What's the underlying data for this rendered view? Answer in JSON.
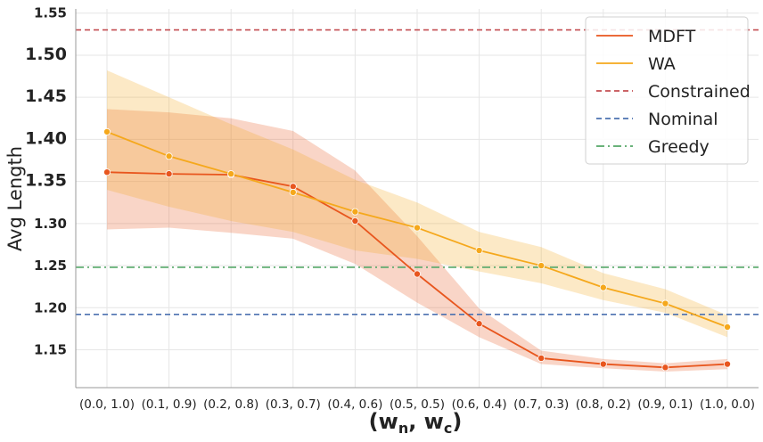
{
  "chart_data": {
    "type": "line",
    "title": "",
    "xlabel": "(w_n, w_c)",
    "xlabel_main": "(w",
    "xlabel_sub_n": "n",
    "xlabel_sep": ", w",
    "xlabel_sub_c": "c",
    "xlabel_close": ")",
    "ylabel": "Avg Length",
    "ylim": [
      1.105,
      1.555
    ],
    "yticks": [
      1.15,
      1.2,
      1.25,
      1.3,
      1.35,
      1.4,
      1.45,
      1.5,
      1.55
    ],
    "ytick_labels": [
      "1.15",
      "1.20",
      "1.25",
      "1.30",
      "1.35",
      "1.40",
      "1.45",
      "1.50",
      "1.55"
    ],
    "categories": [
      "(0.0, 1.0)",
      "(0.1, 0.9)",
      "(0.2, 0.8)",
      "(0.3, 0.7)",
      "(0.4, 0.6)",
      "(0.5, 0.5)",
      "(0.6, 0.4)",
      "(0.7, 0.3)",
      "(0.8, 0.2)",
      "(0.9, 0.1)",
      "(1.0, 0.0)"
    ],
    "series": [
      {
        "name": "MDFT",
        "color": "#e8561e",
        "values": [
          1.361,
          1.359,
          1.358,
          1.344,
          1.303,
          1.24,
          1.181,
          1.14,
          1.133,
          1.129,
          1.133
        ],
        "lower": [
          1.293,
          1.295,
          1.289,
          1.282,
          1.252,
          1.206,
          1.165,
          1.133,
          1.128,
          1.124,
          1.127
        ],
        "upper": [
          1.436,
          1.432,
          1.425,
          1.41,
          1.363,
          1.285,
          1.199,
          1.149,
          1.139,
          1.134,
          1.139
        ]
      },
      {
        "name": "WA",
        "color": "#f5a81c",
        "values": [
          1.409,
          1.38,
          1.359,
          1.337,
          1.314,
          1.295,
          1.268,
          1.25,
          1.224,
          1.205,
          1.177
        ],
        "lower": [
          1.34,
          1.32,
          1.303,
          1.29,
          1.268,
          1.258,
          1.243,
          1.229,
          1.209,
          1.194,
          1.165
        ],
        "upper": [
          1.482,
          1.45,
          1.418,
          1.388,
          1.352,
          1.325,
          1.29,
          1.272,
          1.241,
          1.222,
          1.191
        ]
      }
    ],
    "reference_lines": [
      {
        "name": "Constrained",
        "value": 1.53,
        "color": "#c44e52",
        "style": "dashed"
      },
      {
        "name": "Nominal",
        "value": 1.192,
        "color": "#4c72b0",
        "style": "dashed"
      },
      {
        "name": "Greedy",
        "value": 1.248,
        "color": "#55a868",
        "style": "dashdot"
      }
    ],
    "legend": {
      "position": "top-right",
      "entries": [
        "MDFT",
        "WA",
        "Constrained",
        "Nominal",
        "Greedy"
      ]
    },
    "grid": true
  }
}
